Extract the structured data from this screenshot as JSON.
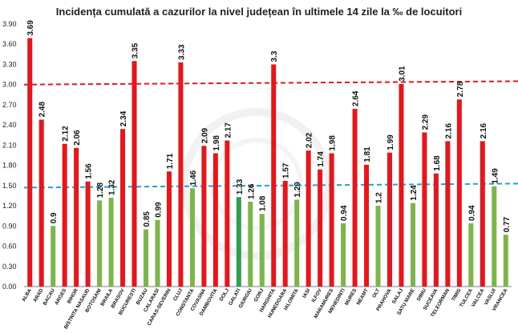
{
  "chart_data": {
    "type": "bar",
    "title": "Incidența cumulată a cazurilor la nivel județean în ultimele 14 zile la ‰ de locuitori",
    "xlabel": "",
    "ylabel": "",
    "ylim": [
      0,
      3.9
    ],
    "yticks": [
      "0.00",
      "0.30",
      "0.60",
      "0.90",
      "1.20",
      "1.50",
      "1.80",
      "2.10",
      "2.40",
      "2.70",
      "3.00",
      "3.30",
      "3.60",
      "3.90"
    ],
    "grid": false,
    "legend": "none",
    "colors": {
      "above": "#e8151b",
      "below": "#7ab648",
      "highlight": "#2e9e4f",
      "red_line": "#e8151b",
      "blue_line": "#1ca3d8"
    },
    "reference_lines": [
      {
        "name": "",
        "y_start": 3.0,
        "y_end": 3.05,
        "color": "#e8151b",
        "style": "dashed"
      },
      {
        "name": "",
        "y_start": 1.47,
        "y_end": 1.53,
        "color": "#1ca3d8",
        "style": "dashed"
      }
    ],
    "categories": [
      "ALBA",
      "ARAD",
      "BACAU",
      "ARGES",
      "BIHOR",
      "BISTRITA NASAUD",
      "BOTOSANI",
      "BRAILA",
      "BRASOV",
      "BUCURESTI",
      "BUZAU",
      "CALARASI",
      "CARAS-SEVERIN",
      "CLUJ",
      "CONSTANTA",
      "COVASNA",
      "DAMBOVITA",
      "DOLJ",
      "GALATI",
      "GIURGIU",
      "GORJ",
      "HARGHITA",
      "HUNEDOARA",
      "IALOMITA",
      "IASI",
      "ILFOV",
      "MARAMURES",
      "MEHEDINTI",
      "MURES",
      "NEAMT",
      "OLT",
      "PRAHOVA",
      "SALAJ",
      "SATU MARE",
      "SIBIU",
      "SUCEAVA",
      "TELEORMAN",
      "TIMIS",
      "TULCEA",
      "VALCEA",
      "VASLUI",
      "VRANCEA"
    ],
    "values": [
      3.69,
      2.48,
      0.9,
      2.12,
      2.06,
      1.56,
      1.28,
      1.32,
      2.34,
      3.35,
      0.85,
      0.99,
      1.71,
      3.33,
      1.46,
      2.09,
      1.98,
      2.17,
      1.33,
      1.26,
      1.08,
      3.3,
      1.57,
      1.29,
      2.02,
      1.74,
      1.98,
      0.94,
      2.64,
      1.81,
      1.2,
      1.99,
      3.01,
      1.24,
      2.29,
      1.68,
      2.16,
      2.78,
      0.94,
      2.16,
      1.49,
      0.77
    ],
    "value_labels": [
      "3.69",
      "2.48",
      "0.9",
      "2.12",
      "2.06",
      "1.56",
      "1.28",
      "1.32",
      "2.34",
      "3.35",
      "0.85",
      "0.99",
      "1.71",
      "3.33",
      "1.46",
      "2.09",
      "1.98",
      "2.17",
      "1.33",
      "1.26",
      "1.08",
      "3.3",
      "1.57",
      "1.29",
      "2.02",
      "1.74",
      "1.98",
      "0.94",
      "2.64",
      "1.81",
      "1.2",
      "1.99",
      "3.01",
      "1.24",
      "2.29",
      "1.68",
      "2.16",
      "2.78",
      "0.94",
      "2.16",
      "1.49",
      "0.77"
    ],
    "bar_colors": [
      "above",
      "above",
      "below",
      "above",
      "above",
      "above",
      "below",
      "below",
      "above",
      "above",
      "below",
      "below",
      "above",
      "above",
      "below",
      "above",
      "above",
      "above",
      "highlight",
      "below",
      "below",
      "above",
      "above",
      "below",
      "above",
      "above",
      "above",
      "below",
      "above",
      "above",
      "below",
      "above",
      "above",
      "below",
      "above",
      "above",
      "above",
      "above",
      "below",
      "above",
      "below",
      "below"
    ]
  }
}
